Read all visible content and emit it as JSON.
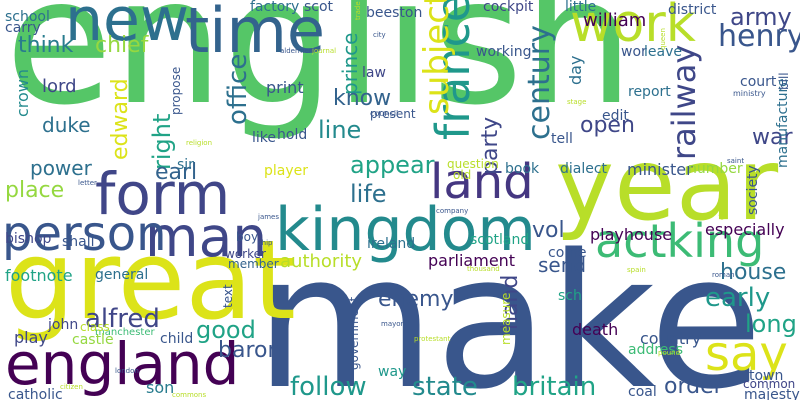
{
  "words": [
    {
      "text": "english",
      "color": "#55c667",
      "rotated": false
    },
    {
      "text": "make",
      "color": "#39568c",
      "rotated": false
    },
    {
      "text": "great",
      "color": "#dce319",
      "rotated": false
    },
    {
      "text": "year",
      "color": "#b8de29",
      "rotated": false
    },
    {
      "text": "kingdom",
      "color": "#238a8d",
      "rotated": false
    },
    {
      "text": "england",
      "color": "#440154",
      "rotated": false
    },
    {
      "text": "new",
      "color": "#2d708e",
      "rotated": false
    },
    {
      "text": "time",
      "color": "#33638d",
      "rotated": false
    },
    {
      "text": "work",
      "color": "#b8de29",
      "rotated": false
    },
    {
      "text": "form",
      "color": "#404688",
      "rotated": false
    },
    {
      "text": "man",
      "color": "#3f4788",
      "rotated": false
    },
    {
      "text": "person",
      "color": "#39568c",
      "rotated": false
    },
    {
      "text": "land",
      "color": "#453781",
      "rotated": false
    },
    {
      "text": "actking",
      "color": "#3cbb75",
      "rotated": false
    },
    {
      "text": "say",
      "color": "#dce319",
      "rotated": false
    },
    {
      "text": "france",
      "color": "#1f988b",
      "rotated": true
    },
    {
      "text": "subject",
      "color": "#dce319",
      "rotated": true
    },
    {
      "text": "century",
      "color": "#2d708e",
      "rotated": true
    },
    {
      "text": "railway",
      "color": "#3f4788",
      "rotated": true
    },
    {
      "text": "army",
      "color": "#3f4788",
      "rotated": false
    },
    {
      "text": "henry",
      "color": "#39568c",
      "rotated": false
    },
    {
      "text": "think",
      "color": "#287c8e",
      "rotated": false
    },
    {
      "text": "chief",
      "color": "#95d840",
      "rotated": false
    },
    {
      "text": "office",
      "color": "#2d708e",
      "rotated": true
    },
    {
      "text": "right",
      "color": "#20a386",
      "rotated": true
    },
    {
      "text": "edward",
      "color": "#dce319",
      "rotated": true
    },
    {
      "text": "prince",
      "color": "#1f988b",
      "rotated": true
    },
    {
      "text": "party",
      "color": "#3f4788",
      "rotated": true
    },
    {
      "text": "know",
      "color": "#33638d",
      "rotated": false
    },
    {
      "text": "line",
      "color": "#238a8d",
      "rotated": false
    },
    {
      "text": "open",
      "color": "#3f4788",
      "rotated": false
    },
    {
      "text": "war",
      "color": "#3f4788",
      "rotated": false
    },
    {
      "text": "lord",
      "color": "#3f4788",
      "rotated": false
    },
    {
      "text": "duke",
      "color": "#2d708e",
      "rotated": false
    },
    {
      "text": "crown",
      "color": "#238a8d",
      "rotated": true
    },
    {
      "text": "power",
      "color": "#2d708e",
      "rotated": false
    },
    {
      "text": "earl",
      "color": "#33638d",
      "rotated": false
    },
    {
      "text": "place",
      "color": "#95d840",
      "rotated": false
    },
    {
      "text": "appear",
      "color": "#20a386",
      "rotated": false
    },
    {
      "text": "life",
      "color": "#2d708e",
      "rotated": false
    },
    {
      "text": "house",
      "color": "#2d708e",
      "rotated": false
    },
    {
      "text": "early",
      "color": "#1f988b",
      "rotated": false
    },
    {
      "text": "long",
      "color": "#20a386",
      "rotated": false
    },
    {
      "text": "send",
      "color": "#39568c",
      "rotated": false
    },
    {
      "text": "vol",
      "color": "#39568c",
      "rotated": false
    },
    {
      "text": "authority",
      "color": "#b8de29",
      "rotated": false
    },
    {
      "text": "enemy",
      "color": "#39568c",
      "rotated": false
    },
    {
      "text": "alfred",
      "color": "#404688",
      "rotated": false
    },
    {
      "text": "good",
      "color": "#20a386",
      "rotated": false
    },
    {
      "text": "hand",
      "color": "#3f4788",
      "rotated": true
    },
    {
      "text": "follow",
      "color": "#1f988b",
      "rotated": false
    },
    {
      "text": "state",
      "color": "#238a8d",
      "rotated": false
    },
    {
      "text": "britain",
      "color": "#20a386",
      "rotated": false
    },
    {
      "text": "order",
      "color": "#39568c",
      "rotated": false
    },
    {
      "text": "baron",
      "color": "#39568c",
      "rotated": false
    },
    {
      "text": "parliament",
      "color": "#440154",
      "rotated": false
    },
    {
      "text": "scotland",
      "color": "#20a386",
      "rotated": false
    },
    {
      "text": "ireland",
      "color": "#2d708e",
      "rotated": false
    },
    {
      "text": "bishop",
      "color": "#3f4788",
      "rotated": false
    },
    {
      "text": "shall",
      "color": "#39568c",
      "rotated": false
    },
    {
      "text": "footnote",
      "color": "#20a386",
      "rotated": false
    },
    {
      "text": "general",
      "color": "#2d708e",
      "rotated": false
    },
    {
      "text": "manchester",
      "color": "#3cbb75",
      "rotated": false
    },
    {
      "text": "worker",
      "color": "#3f4788",
      "rotated": false
    },
    {
      "text": "member",
      "color": "#33638d",
      "rotated": false
    },
    {
      "text": "boy",
      "color": "#39568c",
      "rotated": false
    },
    {
      "text": "john",
      "color": "#3f4788",
      "rotated": false
    },
    {
      "text": "castle",
      "color": "#95d840",
      "rotated": false
    },
    {
      "text": "child",
      "color": "#39568c",
      "rotated": false
    },
    {
      "text": "play",
      "color": "#3f4788",
      "rotated": false
    },
    {
      "text": "class",
      "color": "#b8de29",
      "rotated": false
    },
    {
      "text": "catholic",
      "color": "#39568c",
      "rotated": false
    },
    {
      "text": "son",
      "color": "#287c8e",
      "rotated": false
    },
    {
      "text": "way",
      "color": "#1f988b",
      "rotated": false
    },
    {
      "text": "text",
      "color": "#39568c",
      "rotated": true
    },
    {
      "text": "government",
      "color": "#39568c",
      "rotated": true
    },
    {
      "text": "measure",
      "color": "#b8de29",
      "rotated": true
    },
    {
      "text": "death",
      "color": "#440154",
      "rotated": false
    },
    {
      "text": "country",
      "color": "#39568c",
      "rotated": false
    },
    {
      "text": "address",
      "color": "#3cbb75",
      "rotated": false
    },
    {
      "text": "coal",
      "color": "#39568c",
      "rotated": false
    },
    {
      "text": "town",
      "color": "#39568c",
      "rotated": false
    },
    {
      "text": "common",
      "color": "#404688",
      "rotated": false
    },
    {
      "text": "majesty",
      "color": "#39568c",
      "rotated": false
    },
    {
      "text": "playhouse",
      "color": "#440154",
      "rotated": false
    },
    {
      "text": "especially",
      "color": "#440154",
      "rotated": false
    },
    {
      "text": "come",
      "color": "#39568c",
      "rotated": false
    },
    {
      "text": "sch",
      "color": "#20a386",
      "rotated": false
    },
    {
      "text": "book",
      "color": "#2d708e",
      "rotated": false
    },
    {
      "text": "dialect",
      "color": "#2d708e",
      "rotated": false
    },
    {
      "text": "minister",
      "color": "#39568c",
      "rotated": false
    },
    {
      "text": "number",
      "color": "#95d840",
      "rotated": false
    },
    {
      "text": "question",
      "color": "#b8de29",
      "rotated": false
    },
    {
      "text": "old",
      "color": "#b8de29",
      "rotated": false
    },
    {
      "text": "player",
      "color": "#dce319",
      "rotated": false
    },
    {
      "text": "hold",
      "color": "#39568c",
      "rotated": false
    },
    {
      "text": "like",
      "color": "#39568c",
      "rotated": false
    },
    {
      "text": "sir",
      "color": "#2d708e",
      "rotated": false
    },
    {
      "text": "propose",
      "color": "#39568c",
      "rotated": true
    },
    {
      "text": "print",
      "color": "#39568c",
      "rotated": false
    },
    {
      "text": "present",
      "color": "#39568c",
      "rotated": false
    },
    {
      "text": "law",
      "color": "#3f4788",
      "rotated": false
    },
    {
      "text": "scot",
      "color": "#39568c",
      "rotated": false
    },
    {
      "text": "factory",
      "color": "#2d708e",
      "rotated": false
    },
    {
      "text": "school",
      "color": "#2d708e",
      "rotated": false
    },
    {
      "text": "carry",
      "color": "#39568c",
      "rotated": false
    },
    {
      "text": "beeston",
      "color": "#39568c",
      "rotated": false
    },
    {
      "text": "cockpit",
      "color": "#3f4788",
      "rotated": false
    },
    {
      "text": "little",
      "color": "#2d708e",
      "rotated": false
    },
    {
      "text": "william",
      "color": "#440154",
      "rotated": false
    },
    {
      "text": "district",
      "color": "#39568c",
      "rotated": false
    },
    {
      "text": "wor",
      "color": "#39568c",
      "rotated": false
    },
    {
      "text": "leave",
      "color": "#2d708e",
      "rotated": false
    },
    {
      "text": "working",
      "color": "#39568c",
      "rotated": false
    },
    {
      "text": "court",
      "color": "#39568c",
      "rotated": false
    },
    {
      "text": "day",
      "color": "#2d708e",
      "rotated": true
    },
    {
      "text": "report",
      "color": "#2d708e",
      "rotated": false
    },
    {
      "text": "edit",
      "color": "#39568c",
      "rotated": false
    },
    {
      "text": "tell",
      "color": "#39568c",
      "rotated": false
    },
    {
      "text": "manufacture",
      "color": "#2d708e",
      "rotated": true
    },
    {
      "text": "society",
      "color": "#39568c",
      "rotated": true
    },
    {
      "text": "bill",
      "color": "#39568c",
      "rotated": true
    },
    {
      "text": "ministry",
      "color": "#39568c",
      "rotated": false
    },
    {
      "text": "council",
      "color": "#39568c",
      "rotated": false
    },
    {
      "text": "aldermen",
      "color": "#39568c",
      "rotated": false
    },
    {
      "text": "journal",
      "color": "#b8de29",
      "rotated": false
    },
    {
      "text": "city",
      "color": "#39568c",
      "rotated": false
    },
    {
      "text": "religion",
      "color": "#b8de29",
      "rotated": false
    },
    {
      "text": "letter",
      "color": "#39568c",
      "rotated": false
    },
    {
      "text": "james",
      "color": "#39568c",
      "rotated": false
    },
    {
      "text": "ship",
      "color": "#39568c",
      "rotated": false
    },
    {
      "text": "london",
      "color": "#39568c",
      "rotated": false
    },
    {
      "text": "citizen",
      "color": "#b8de29",
      "rotated": false
    },
    {
      "text": "commons",
      "color": "#b8de29",
      "rotated": false
    },
    {
      "text": "company",
      "color": "#39568c",
      "rotated": false
    },
    {
      "text": "thousand",
      "color": "#b8de29",
      "rotated": false
    },
    {
      "text": "spain",
      "color": "#b8de29",
      "rotated": false
    },
    {
      "text": "mayor",
      "color": "#39568c",
      "rotated": false
    },
    {
      "text": "protestant",
      "color": "#b8de29",
      "rotated": false
    },
    {
      "text": "pound",
      "color": "#b8de29",
      "rotated": false
    },
    {
      "text": "roman",
      "color": "#39568c",
      "rotated": false
    },
    {
      "text": "saint",
      "color": "#39568c",
      "rotated": false
    },
    {
      "text": "church",
      "color": "#b8de29",
      "rotated": true
    },
    {
      "text": "queen",
      "color": "#b8de29",
      "rotated": true
    },
    {
      "text": "stage",
      "color": "#b8de29",
      "rotated": false
    },
    {
      "text": "trade",
      "color": "#b8de29",
      "rotated": true
    }
  ]
}
